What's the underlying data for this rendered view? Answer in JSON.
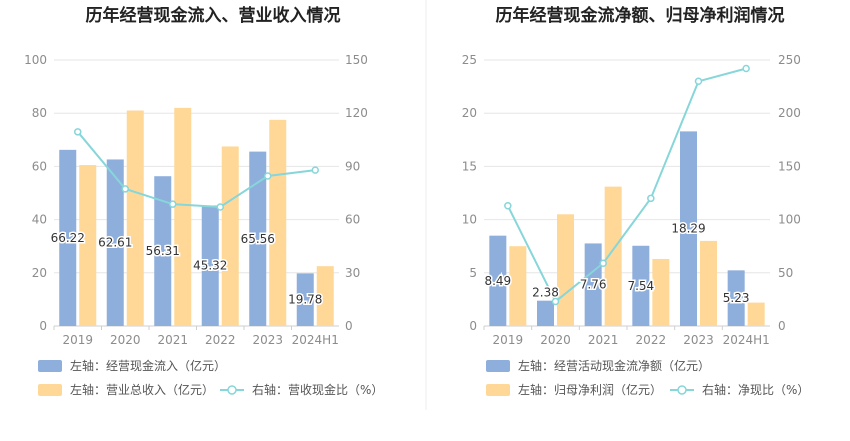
{
  "colors": {
    "bar_a": "#8eaedc",
    "bar_b": "#ffd898",
    "line": "#86d6da",
    "grid": "#e6e6e6",
    "axis_text": "#8c8c8c",
    "title": "#222222"
  },
  "chart_data": [
    {
      "type": "bar",
      "title": "历年经营现金流入、营业收入情况",
      "categories": [
        "2019",
        "2020",
        "2021",
        "2022",
        "2023",
        "2024H1"
      ],
      "left_axis": {
        "ylim": [
          0,
          100
        ],
        "ticks": [
          "0",
          "20",
          "40",
          "60",
          "80",
          "100"
        ]
      },
      "right_axis": {
        "ylim": [
          0,
          150
        ],
        "ticks": [
          "0",
          "30",
          "60",
          "90",
          "120",
          "150"
        ]
      },
      "series": [
        {
          "name": "左轴：经营现金流入（亿元）",
          "kind": "bar",
          "axis": "left",
          "color": "#8eaedc",
          "values": [
            66.22,
            62.61,
            56.31,
            45.32,
            65.56,
            19.78
          ],
          "labels": [
            "66.22",
            "62.61",
            "56.31",
            "45.32",
            "65.56",
            "19.78"
          ]
        },
        {
          "name": "左轴：营业总收入（亿元）",
          "kind": "bar",
          "axis": "left",
          "color": "#ffd898",
          "values": [
            60.5,
            81,
            82,
            67.5,
            77.5,
            22.5
          ]
        },
        {
          "name": "右轴：营收现金比（%）",
          "kind": "line",
          "axis": "right",
          "color": "#86d6da",
          "values": [
            109.5,
            77.3,
            68.7,
            67.1,
            84.6,
            87.9
          ]
        }
      ],
      "legend": {
        "position": "bottom"
      },
      "grid": true
    },
    {
      "type": "bar",
      "title": "历年经营现金流净额、归母净利润情况",
      "categories": [
        "2019",
        "2020",
        "2021",
        "2022",
        "2023",
        "2024H1"
      ],
      "left_axis": {
        "ylim": [
          0,
          25
        ],
        "ticks": [
          "0",
          "5",
          "10",
          "15",
          "20",
          "25"
        ]
      },
      "right_axis": {
        "ylim": [
          0,
          250
        ],
        "ticks": [
          "0",
          "50",
          "100",
          "150",
          "200",
          "250"
        ]
      },
      "series": [
        {
          "name": "左轴：经营活动现金流净额（亿元）",
          "kind": "bar",
          "axis": "left",
          "color": "#8eaedc",
          "values": [
            8.49,
            2.38,
            7.76,
            7.54,
            18.29,
            5.23
          ],
          "labels": [
            "8.49",
            "2.38",
            "7.76",
            "7.54",
            "18.29",
            "5.23"
          ]
        },
        {
          "name": "左轴：归母净利润（亿元）",
          "kind": "bar",
          "axis": "left",
          "color": "#ffd898",
          "values": [
            7.5,
            10.5,
            13.1,
            6.3,
            8.0,
            2.2
          ]
        },
        {
          "name": "右轴：净现比（%）",
          "kind": "line",
          "axis": "right",
          "color": "#86d6da",
          "values": [
            113,
            23,
            59,
            120,
            230,
            242
          ]
        }
      ],
      "legend": {
        "position": "bottom"
      },
      "grid": true
    }
  ]
}
